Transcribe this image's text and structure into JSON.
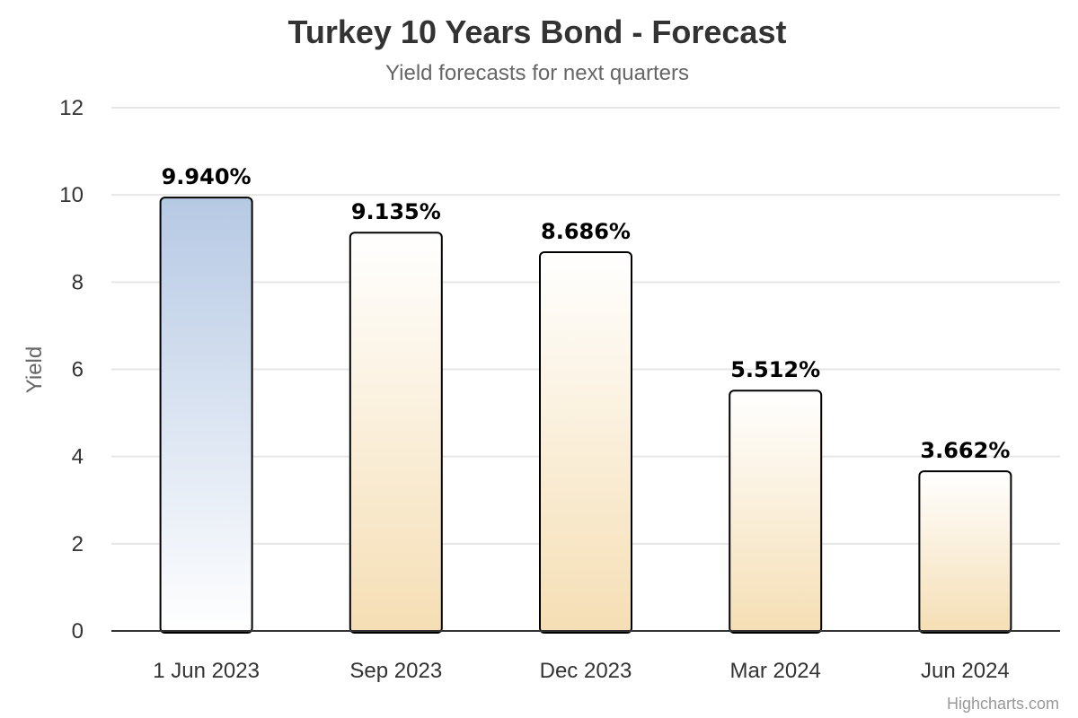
{
  "chart_data": {
    "type": "bar",
    "title": "Turkey 10 Years Bond - Forecast",
    "subtitle": "Yield forecasts for next quarters",
    "ylabel": "Yield",
    "xlabel": "",
    "ylim": [
      0,
      12
    ],
    "yticks": [
      0,
      2,
      4,
      6,
      8,
      10,
      12
    ],
    "categories": [
      "1 Jun 2023",
      "Sep 2023",
      "Dec 2023",
      "Mar 2024",
      "Jun 2024"
    ],
    "values": [
      9.94,
      9.135,
      8.686,
      5.512,
      3.662
    ],
    "data_labels": [
      "9.940%",
      "9.135%",
      "8.686%",
      "5.512%",
      "3.662%"
    ],
    "grid": true,
    "legend": "none",
    "colors": {
      "current_top": "#b6c9e4",
      "current_bottom": "#ffffff",
      "forecast_top": "#ffffff",
      "forecast_bottom": "#f5deb4",
      "bar_border": "#000000"
    }
  },
  "credits": "Highcharts.com"
}
